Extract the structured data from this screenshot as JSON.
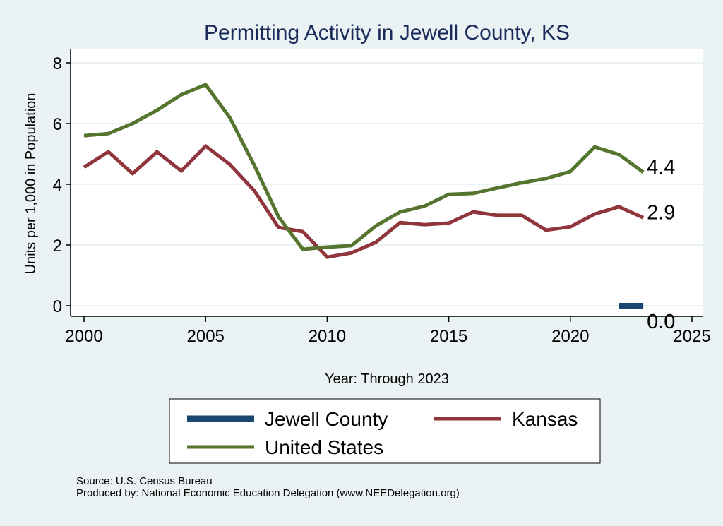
{
  "chart_data": {
    "type": "line",
    "title": "Permitting Activity in Jewell County, KS",
    "xlabel": "Year: Through 2023",
    "ylabel": "Units per 1,000 in Population",
    "xlim": [
      2000,
      2025
    ],
    "ylim": [
      0,
      8
    ],
    "xticks": [
      "2000",
      "2005",
      "2010",
      "2015",
      "2020",
      "2025"
    ],
    "yticks": [
      "0",
      "2",
      "4",
      "6",
      "8"
    ],
    "grid": true,
    "legend_position": "bottom",
    "series": [
      {
        "name": "Jewell County",
        "color": "#1a476f",
        "x": [
          2022,
          2023
        ],
        "values": [
          0,
          0
        ],
        "end_label": "0.0"
      },
      {
        "name": "Kansas",
        "color": "#90353b",
        "x": [
          2000,
          2001,
          2002,
          2003,
          2004,
          2005,
          2006,
          2007,
          2008,
          2009,
          2010,
          2011,
          2012,
          2013,
          2014,
          2015,
          2016,
          2017,
          2018,
          2019,
          2020,
          2021,
          2022,
          2023
        ],
        "values": [
          4.56,
          5.07,
          4.35,
          5.07,
          4.44,
          5.26,
          4.65,
          3.79,
          2.58,
          2.44,
          1.6,
          1.74,
          2.09,
          2.74,
          2.67,
          2.72,
          3.09,
          2.98,
          2.98,
          2.49,
          2.6,
          3.02,
          3.26,
          2.9
        ],
        "end_label": "2.9"
      },
      {
        "name": "United States",
        "color": "#55752f",
        "x": [
          2000,
          2001,
          2002,
          2003,
          2004,
          2005,
          2006,
          2007,
          2008,
          2009,
          2010,
          2011,
          2012,
          2013,
          2014,
          2015,
          2016,
          2017,
          2018,
          2019,
          2020,
          2021,
          2022,
          2023
        ],
        "values": [
          5.6,
          5.67,
          6.0,
          6.44,
          6.95,
          7.28,
          6.19,
          4.63,
          2.93,
          1.86,
          1.93,
          1.98,
          2.63,
          3.09,
          3.28,
          3.67,
          3.7,
          3.88,
          4.05,
          4.19,
          4.42,
          5.23,
          4.98,
          4.4
        ],
        "end_label": "4.4"
      }
    ]
  },
  "source": "Source: U.S. Census Bureau",
  "produced_by": "Produced by: National Economic Education Delegation (www.NEEDelegation.org)"
}
